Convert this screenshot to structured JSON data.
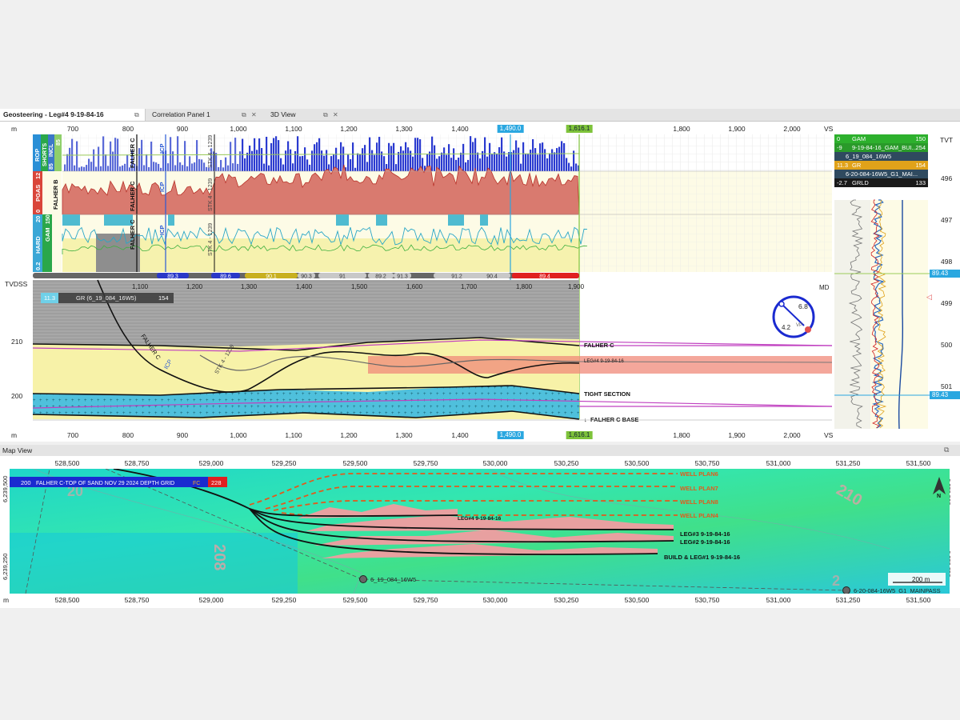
{
  "tabs": [
    {
      "label": "Geosteering - Leg#4 9-19-84-16",
      "active": true
    },
    {
      "label": "Correlation Panel 1",
      "active": false
    },
    {
      "label": "3D View",
      "active": false
    }
  ],
  "tab_controls": {
    "restore": "⧉",
    "close": "✕"
  },
  "section_view": {
    "top_axis_unit": "m",
    "top_axis_ticks": [
      "700",
      "800",
      "900",
      "1,000",
      "1,100",
      "1,200",
      "1,300",
      "1,400",
      "1,500",
      "1,600",
      "1,700",
      "1,800",
      "1,900",
      "2,000"
    ],
    "top_axis_end": "VS",
    "md_flag_blue": "1,490.0",
    "md_flag_green": "1,616.1",
    "right_axis_title": "TVT",
    "right_ticks": [
      "496",
      "497",
      "498",
      "499",
      "500",
      "501"
    ],
    "tracks": {
      "rop_header": [
        "ROP",
        "SHORTS",
        "85",
        "INCL",
        "85"
      ],
      "pgas_header": [
        "0",
        "PGAS",
        "12"
      ],
      "hard_header": [
        "0.2",
        "HARD",
        "20",
        "GAM",
        "150"
      ]
    },
    "track_labels": [
      "FALHER C",
      "ICP",
      "STK 4 - 1239",
      "FALHER B",
      "FALHER C",
      "ICP",
      "STK 4 - 1239",
      "FALHER C",
      "ICP",
      "STK 4 - 1239"
    ],
    "dip_values": [
      "89.3",
      "89.6",
      "90.1",
      "90.3",
      "91",
      "89.2",
      "91.3",
      "91.2",
      "90.4",
      "89.4"
    ],
    "md_axis_title": "TVDSS",
    "md_axis_ticks": [
      "1,100",
      "1,200",
      "1,300",
      "1,400",
      "1,500",
      "1,600",
      "1,700",
      "1,800",
      "1,900"
    ],
    "md_axis_end": "MD",
    "tvdss_ticks": [
      "210",
      "200"
    ],
    "gr_bar": {
      "min": "11.3",
      "label": "GR (6_19_084_16W5)",
      "max": "154"
    },
    "formations": [
      "FALHER C",
      "LEG#4 9-19-84-16",
      "TIGHT SECTION",
      "FALHER C BASE"
    ],
    "formation_arrow": "↓",
    "section_labels": [
      "FALHER C",
      "ICP",
      "STK 4 - 1239"
    ],
    "dip_gauge": {
      "top": "6.8",
      "left": "4.2",
      "mid": "VP"
    },
    "bottom_axis_unit": "m",
    "bottom_axis_end": "VS",
    "right_flag_top": "89.43",
    "right_flag_bottom": "89.43"
  },
  "right_panel": {
    "rows": [
      {
        "min": "0",
        "label": "GAM",
        "max": "150",
        "color": "#2db02d"
      },
      {
        "min": "-9",
        "label": "9-19-84-16_GAM_BUI...",
        "max": "254",
        "color": "#2a9a2a"
      },
      {
        "min": "",
        "label": "6_19_084_16W5",
        "max": "",
        "color": "#2f4a5f"
      },
      {
        "min": "11.3",
        "label": "GR",
        "max": "154",
        "color": "#e0a21a"
      },
      {
        "min": "",
        "label": "6-20-084-16W5_G1_MAI...",
        "max": "",
        "color": "#2f4a5f"
      },
      {
        "min": "-2.7",
        "label": "GRLD",
        "max": "133",
        "color": "#1a1a1a"
      }
    ]
  },
  "map_view": {
    "title": "Map View",
    "top_ticks": [
      "528,500",
      "528,750",
      "529,000",
      "529,250",
      "529,500",
      "529,750",
      "530,000",
      "530,250",
      "530,500",
      "530,750",
      "531,000",
      "531,250",
      "531,500"
    ],
    "bottom_ticks": [
      "528,500",
      "528,750",
      "529,000",
      "529,250",
      "529,500",
      "529,750",
      "530,000",
      "530,250",
      "530,500",
      "530,750",
      "531,000",
      "531,250",
      "531,500"
    ],
    "unit": "m",
    "left_ticks": [
      "6,239,500",
      "6,239,250"
    ],
    "legend": {
      "min": "200",
      "title": "FALHER C-TOP OF SAND NOV 29 2024 DEPTH GRID",
      "suffix": "FC",
      "max": "228"
    },
    "contour_labels": [
      "208",
      "210",
      "20",
      "2"
    ],
    "wells": [
      "WELL PLAN6",
      "WELL PLAN7",
      "WELL PLAN8",
      "WELL PLAN4",
      "LEG#4 9-19-84-16",
      "LEG#3 9-19-84-16",
      "LEG#2 9-19-84-16",
      "BUILD & LEG#1 9-19-84-16"
    ],
    "points": [
      "6_19_084_16W5",
      "6-20-084-16W5_G1_MAINPASS"
    ],
    "scale_bar": "200 m",
    "north": "N"
  }
}
